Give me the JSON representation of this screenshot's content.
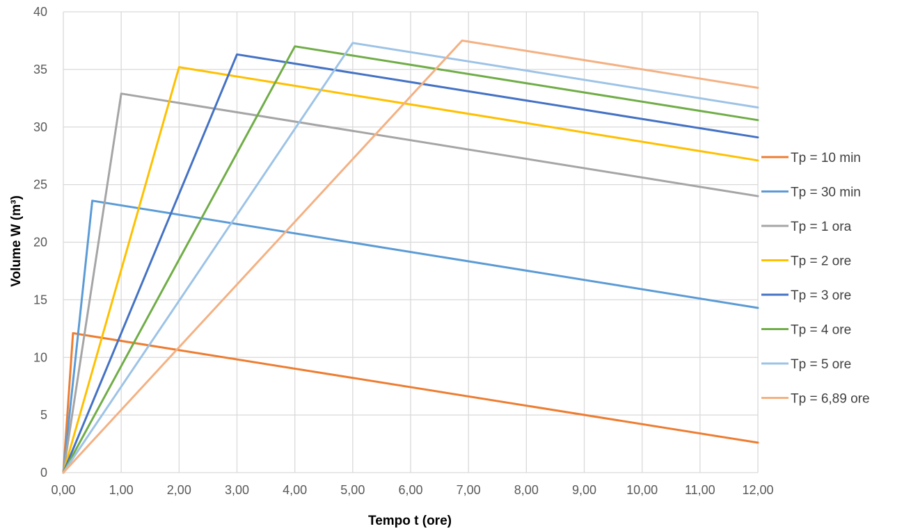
{
  "chart_data": {
    "type": "line",
    "title": "",
    "xlabel": "Tempo t (ore)",
    "ylabel": "Volume W (m³)",
    "xlim": [
      0,
      12
    ],
    "ylim": [
      0,
      40
    ],
    "x_ticks": [
      "0,00",
      "1,00",
      "2,00",
      "3,00",
      "4,00",
      "5,00",
      "6,00",
      "7,00",
      "8,00",
      "9,00",
      "10,00",
      "11,00",
      "12,00"
    ],
    "y_ticks": [
      "0",
      "5",
      "10",
      "15",
      "20",
      "25",
      "30",
      "35",
      "40"
    ],
    "grid": true,
    "legend_position": "right",
    "series": [
      {
        "name": "Tp = 10 min",
        "color": "#ED7D31",
        "x": [
          0,
          0.167,
          12
        ],
        "y": [
          0,
          12.1,
          2.6
        ]
      },
      {
        "name": "Tp = 30 min",
        "color": "#5B9BD5",
        "x": [
          0,
          0.5,
          12
        ],
        "y": [
          0,
          23.6,
          14.3
        ]
      },
      {
        "name": "Tp = 1 ora",
        "color": "#A5A5A5",
        "x": [
          0,
          1,
          12
        ],
        "y": [
          0,
          32.9,
          24.0
        ]
      },
      {
        "name": "Tp = 2 ore",
        "color": "#FFC000",
        "x": [
          0,
          2,
          12
        ],
        "y": [
          0,
          35.2,
          27.1
        ]
      },
      {
        "name": "Tp = 3 ore",
        "color": "#4472C4",
        "x": [
          0,
          3,
          12
        ],
        "y": [
          0,
          36.3,
          29.1
        ]
      },
      {
        "name": "Tp = 4 ore",
        "color": "#70AD47",
        "x": [
          0,
          4,
          12
        ],
        "y": [
          0,
          37.0,
          30.6
        ]
      },
      {
        "name": "Tp = 5 ore",
        "color": "#9DC3E6",
        "x": [
          0,
          5,
          12
        ],
        "y": [
          0,
          37.3,
          31.7
        ]
      },
      {
        "name": "Tp = 6,89 ore",
        "color": "#F4B183",
        "x": [
          0,
          6.89,
          12
        ],
        "y": [
          0,
          37.5,
          33.4
        ]
      }
    ]
  }
}
